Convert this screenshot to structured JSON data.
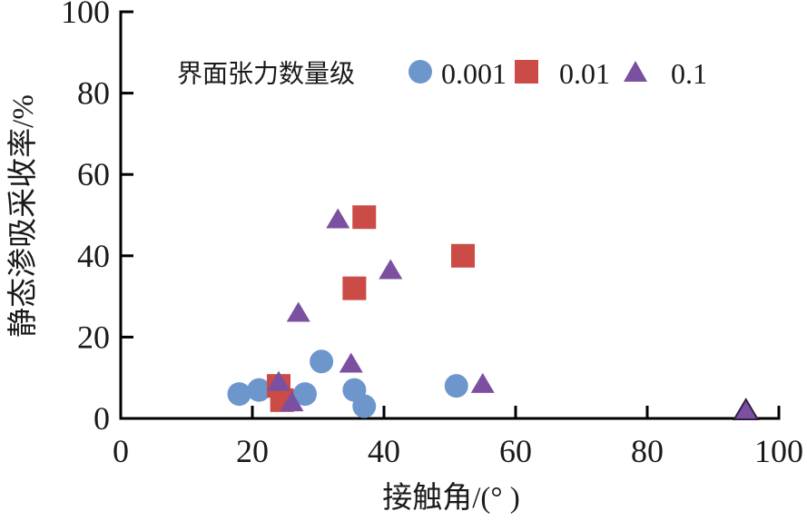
{
  "chart_data": {
    "type": "scatter",
    "title": "",
    "xlabel": "接触角/(° )",
    "ylabel": "静态渗吸采收率/%",
    "xlim": [
      0,
      100
    ],
    "ylim": [
      0,
      100
    ],
    "xticks": [
      0,
      20,
      40,
      60,
      80,
      100
    ],
    "yticks": [
      0,
      20,
      40,
      60,
      80,
      100
    ],
    "grid": false,
    "legend_position": "top-inside",
    "legend_title": "界面张力数量级",
    "axis_color": "#000000",
    "background": "#ffffff",
    "series": [
      {
        "name": "0.001",
        "marker": "circle",
        "color": "#6D96CC",
        "points": [
          [
            18,
            6
          ],
          [
            21,
            7
          ],
          [
            28,
            6
          ],
          [
            30.5,
            14
          ],
          [
            35.5,
            7
          ],
          [
            37,
            3
          ],
          [
            51,
            8
          ]
        ]
      },
      {
        "name": "0.01",
        "marker": "square",
        "color": "#CB4C47",
        "points": [
          [
            24,
            8
          ],
          [
            24.5,
            4.5
          ],
          [
            35.5,
            32
          ],
          [
            37,
            49.5
          ],
          [
            52,
            40
          ]
        ]
      },
      {
        "name": "0.1",
        "marker": "triangle",
        "color": "#7B50A0",
        "points": [
          [
            24,
            9
          ],
          [
            26,
            4
          ],
          [
            27,
            26
          ],
          [
            33,
            49
          ],
          [
            35,
            13.5
          ],
          [
            41,
            36.5
          ],
          [
            55,
            8.5
          ],
          [
            95,
            2,
            "outlined"
          ]
        ]
      }
    ],
    "outline_color": "#2E2140"
  },
  "legend": {
    "title": "界面张力数量级",
    "items": [
      {
        "label": "0.001",
        "marker": "circle-icon"
      },
      {
        "label": "0.01",
        "marker": "square-icon"
      },
      {
        "label": "0.1",
        "marker": "triangle-icon"
      }
    ]
  }
}
